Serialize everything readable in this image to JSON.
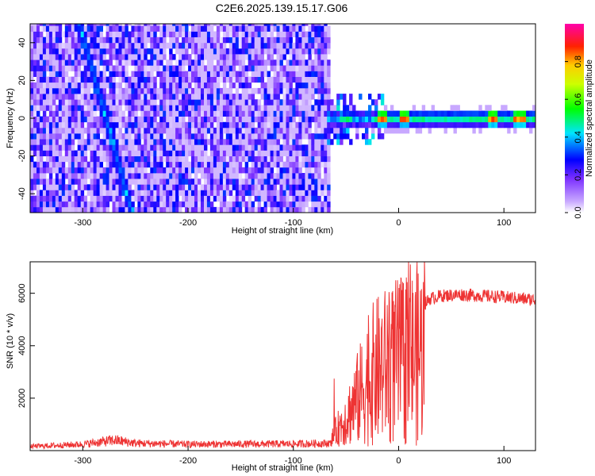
{
  "title": "C2E6.2025.139.15.17.G06",
  "chart_data": [
    {
      "type": "heatmap",
      "xlabel": "Height of straight line (km)",
      "ylabel": "Frequency (Hz)",
      "xlim": [
        -350,
        130
      ],
      "ylim": [
        -50,
        50
      ],
      "xticks": [
        -300,
        -200,
        -100,
        0,
        100
      ],
      "yticks": [
        -40,
        -20,
        0,
        20,
        40
      ],
      "grid": false,
      "colorbar": {
        "label": "Normalized spectral amplitude",
        "range": [
          0,
          1
        ],
        "ticks": [
          "0.0",
          "0.2",
          "0.4",
          "0.6",
          "0.8"
        ],
        "colors": [
          "#ffffff",
          "#7b2fff",
          "#0000ff",
          "#00e5ff",
          "#00ff00",
          "#ffff00",
          "#ff0000",
          "#ff00aa"
        ]
      },
      "features": {
        "noise_region_x": [
          -350,
          -65
        ],
        "noise_amplitude": 0.2,
        "diagonal_streak": {
          "x_at_top": -303,
          "x_at_bottom": -253,
          "amplitude": 0.35
        },
        "signal_band_center_hz": 0,
        "signal_band_width_hz": 4,
        "signal_x_range": [
          -68,
          130
        ],
        "signal_peaks_x": [
          -15,
          5,
          90,
          115
        ]
      }
    },
    {
      "type": "line",
      "xlabel": "Height of straight line (km)",
      "ylabel": "SNR (10 * v/v)",
      "xlim": [
        -350,
        130
      ],
      "ylim": [
        0,
        7200
      ],
      "xticks": [
        -300,
        -200,
        -100,
        0,
        100
      ],
      "yticks": [
        2000,
        4000,
        6000
      ],
      "grid": false,
      "color": "#ee3333",
      "series_profile": {
        "x": [
          -350,
          -300,
          -270,
          -250,
          -200,
          -100,
          -65,
          -60,
          -50,
          -40,
          -30,
          -20,
          -10,
          0,
          10,
          20,
          30,
          40,
          60,
          80,
          100,
          130
        ],
        "y": [
          200,
          300,
          500,
          350,
          300,
          320,
          350,
          900,
          1500,
          2400,
          3300,
          4000,
          4400,
          4700,
          4900,
          5400,
          5800,
          5900,
          5950,
          5900,
          5850,
          5750
        ]
      }
    }
  ]
}
